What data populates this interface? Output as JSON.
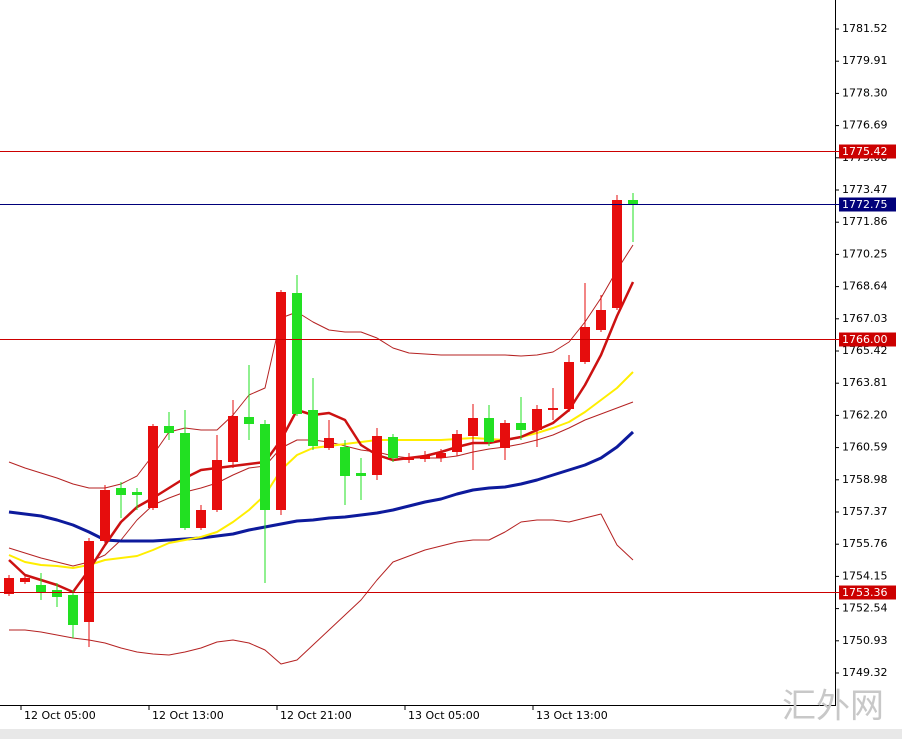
{
  "chart_data": {
    "type": "candlestick",
    "watermark": "汇外网",
    "ylim": [
      1747.72,
      1782.97
    ],
    "yticks": [
      1781.52,
      1779.91,
      {
        "value": 1778.3,
        "label": "1778.30"
      },
      1776.69,
      1775.08,
      1773.47,
      1771.86,
      1770.25,
      1768.64,
      1767.03,
      1765.42,
      1763.81,
      {
        "value": 1762.2,
        "label": "1762.20"
      },
      1760.59,
      1758.98,
      1757.37,
      1755.76,
      1754.15,
      1752.54,
      1750.93,
      1749.32
    ],
    "categories": [
      null,
      "12 Oct 05:00",
      null,
      null,
      null,
      null,
      null,
      null,
      null,
      "12 Oct 13:00",
      null,
      null,
      null,
      null,
      null,
      null,
      null,
      "12 Oct 21:00",
      null,
      null,
      null,
      null,
      null,
      null,
      null,
      "13 Oct 05:00",
      null,
      null,
      null,
      null,
      null,
      null,
      null,
      "13 Oct 13:00",
      null,
      null,
      null,
      null,
      null,
      null
    ],
    "up_color": "#e60d0d",
    "down_color": "#22e022",
    "open": [
      1753.27,
      1753.87,
      1753.72,
      1753.47,
      1753.22,
      1751.87,
      1755.92,
      1758.57,
      1758.37,
      1757.57,
      1761.67,
      1761.32,
      1756.57,
      1757.47,
      1759.87,
      1762.12,
      1761.77,
      1757.47,
      1768.32,
      1762.47,
      1760.57,
      1760.62,
      1759.32,
      1759.22,
      1761.12,
      1759.97,
      1760.02,
      1760.07,
      1760.37,
      1761.17,
      1762.07,
      1760.57,
      1761.82,
      1761.47,
      1762.47,
      1762.52,
      1764.87,
      1766.47,
      1767.57,
      1772.97
    ],
    "high": [
      1754.22,
      1754.17,
      1754.32,
      1753.82,
      1753.47,
      1756.07,
      1758.72,
      1758.87,
      1758.57,
      1761.77,
      1762.37,
      1762.47,
      1757.72,
      1761.22,
      1762.97,
      1764.72,
      1761.97,
      1768.47,
      1769.22,
      1764.07,
      1761.97,
      1760.97,
      1760.07,
      1761.57,
      1761.27,
      1760.32,
      1760.42,
      1760.52,
      1761.47,
      1762.77,
      1762.72,
      1761.97,
      1763.12,
      1762.72,
      1763.57,
      1765.22,
      1768.82,
      1768.22,
      1773.22,
      1773.32
    ],
    "low": [
      1753.17,
      1753.77,
      1752.97,
      1752.62,
      1751.07,
      1750.62,
      1755.82,
      1757.07,
      1757.47,
      1757.47,
      1760.97,
      1756.47,
      1756.47,
      1757.37,
      1759.57,
      1760.97,
      1753.82,
      1757.22,
      1762.17,
      1760.47,
      1760.47,
      1757.72,
      1757.97,
      1758.97,
      1759.87,
      1759.82,
      1759.87,
      1759.87,
      1760.17,
      1759.47,
      1760.67,
      1759.97,
      1760.97,
      1760.62,
      1761.97,
      1762.37,
      1764.77,
      1766.37,
      1767.47,
      1770.87
    ],
    "close": [
      1754.07,
      1754.07,
      1753.37,
      1753.12,
      1751.72,
      1755.92,
      1758.47,
      1758.22,
      1758.22,
      1761.67,
      1761.32,
      1756.57,
      1757.47,
      1759.97,
      1762.17,
      1761.77,
      1757.47,
      1768.37,
      1762.27,
      1760.67,
      1761.07,
      1759.17,
      1759.17,
      1761.17,
      1760.07,
      1760.12,
      1760.17,
      1760.32,
      1761.27,
      1762.07,
      1760.87,
      1761.82,
      1761.47,
      1762.52,
      1762.57,
      1764.87,
      1766.62,
      1767.47,
      1772.97,
      1772.75
    ],
    "lines": [
      {
        "color": "#b52222",
        "width": 1,
        "values": [
          1759.87,
          1759.57,
          1759.32,
          1759.07,
          1758.77,
          1758.57,
          1758.57,
          1758.77,
          1759.17,
          1760.22,
          1761.37,
          1761.57,
          1761.47,
          1761.47,
          1762.22,
          1763.22,
          1763.57,
          1767.07,
          1767.37,
          1766.87,
          1766.47,
          1766.37,
          1766.37,
          1766.07,
          1765.57,
          1765.32,
          1765.27,
          1765.22,
          1765.22,
          1765.22,
          1765.22,
          1765.22,
          1765.17,
          1765.22,
          1765.37,
          1765.87,
          1766.87,
          1768.07,
          1769.47,
          1770.72
        ]
      },
      {
        "color": "#b52222",
        "width": 1,
        "values": [
          1755.57,
          1755.32,
          1755.07,
          1754.87,
          1754.67,
          1754.87,
          1755.22,
          1755.97,
          1756.97,
          1757.72,
          1758.07,
          1758.37,
          1758.57,
          1758.82,
          1759.22,
          1759.57,
          1759.67,
          1760.57,
          1760.97,
          1760.97,
          1760.87,
          1760.67,
          1760.47,
          1760.37,
          1760.17,
          1760.07,
          1760.07,
          1760.07,
          1760.17,
          1760.37,
          1760.52,
          1760.62,
          1760.77,
          1760.97,
          1761.22,
          1761.57,
          1761.97,
          1762.27,
          1762.57,
          1762.87
        ]
      },
      {
        "color": "#b52222",
        "width": 1,
        "values": [
          1751.47,
          1751.47,
          1751.37,
          1751.22,
          1751.07,
          1750.97,
          1750.82,
          1750.57,
          1750.37,
          1750.27,
          1750.22,
          1750.37,
          1750.57,
          1750.87,
          1750.97,
          1750.82,
          1750.47,
          1749.77,
          1749.97,
          1750.72,
          1751.47,
          1752.22,
          1752.97,
          1753.97,
          1754.87,
          1755.17,
          1755.47,
          1755.67,
          1755.87,
          1755.97,
          1755.97,
          1756.37,
          1756.87,
          1756.97,
          1756.97,
          1756.87,
          1757.07,
          1757.27,
          1755.72,
          1754.97
        ]
      },
      {
        "color": "#0d1a9c",
        "width": 3,
        "values": [
          1757.37,
          1757.27,
          1757.17,
          1756.97,
          1756.72,
          1756.37,
          1755.97,
          1755.92,
          1755.92,
          1755.92,
          1755.97,
          1756.02,
          1756.07,
          1756.17,
          1756.27,
          1756.47,
          1756.62,
          1756.77,
          1756.92,
          1756.97,
          1757.07,
          1757.12,
          1757.22,
          1757.32,
          1757.47,
          1757.67,
          1757.87,
          1758.02,
          1758.27,
          1758.47,
          1758.57,
          1758.62,
          1758.77,
          1758.97,
          1759.22,
          1759.47,
          1759.72,
          1760.07,
          1760.62,
          1761.37
        ]
      },
      {
        "color": "#ffee00",
        "width": 2,
        "values": [
          1755.22,
          1754.87,
          1754.72,
          1754.67,
          1754.57,
          1754.72,
          1754.97,
          1755.07,
          1755.17,
          1755.47,
          1755.82,
          1755.97,
          1756.12,
          1756.37,
          1756.87,
          1757.47,
          1758.22,
          1759.47,
          1760.22,
          1760.57,
          1760.67,
          1760.77,
          1760.87,
          1760.97,
          1760.97,
          1760.97,
          1760.97,
          1760.97,
          1761.02,
          1761.07,
          1761.02,
          1760.97,
          1761.12,
          1761.32,
          1761.57,
          1761.87,
          1762.37,
          1762.97,
          1763.57,
          1764.37
        ]
      },
      {
        "color": "#cc1111",
        "width": 2.5,
        "values": [
          1754.97,
          1754.22,
          1753.97,
          1753.72,
          1753.37,
          1754.47,
          1755.72,
          1756.87,
          1757.62,
          1758.07,
          1758.57,
          1759.07,
          1759.47,
          1759.57,
          1759.67,
          1759.77,
          1759.87,
          1760.97,
          1762.47,
          1762.22,
          1762.32,
          1761.97,
          1760.72,
          1760.22,
          1759.97,
          1760.07,
          1760.17,
          1760.37,
          1760.62,
          1760.82,
          1760.82,
          1760.97,
          1761.12,
          1761.47,
          1761.82,
          1762.47,
          1763.72,
          1765.22,
          1767.17,
          1768.87
        ]
      }
    ],
    "hlines": [
      {
        "value": 1775.42,
        "color": "#cc0000"
      },
      {
        "value": 1772.75,
        "color": "#00007a"
      },
      {
        "value": 1766.0,
        "label": "1766.00",
        "color": "#cc0000"
      },
      {
        "value": 1753.36,
        "color": "#cc0000"
      }
    ]
  }
}
